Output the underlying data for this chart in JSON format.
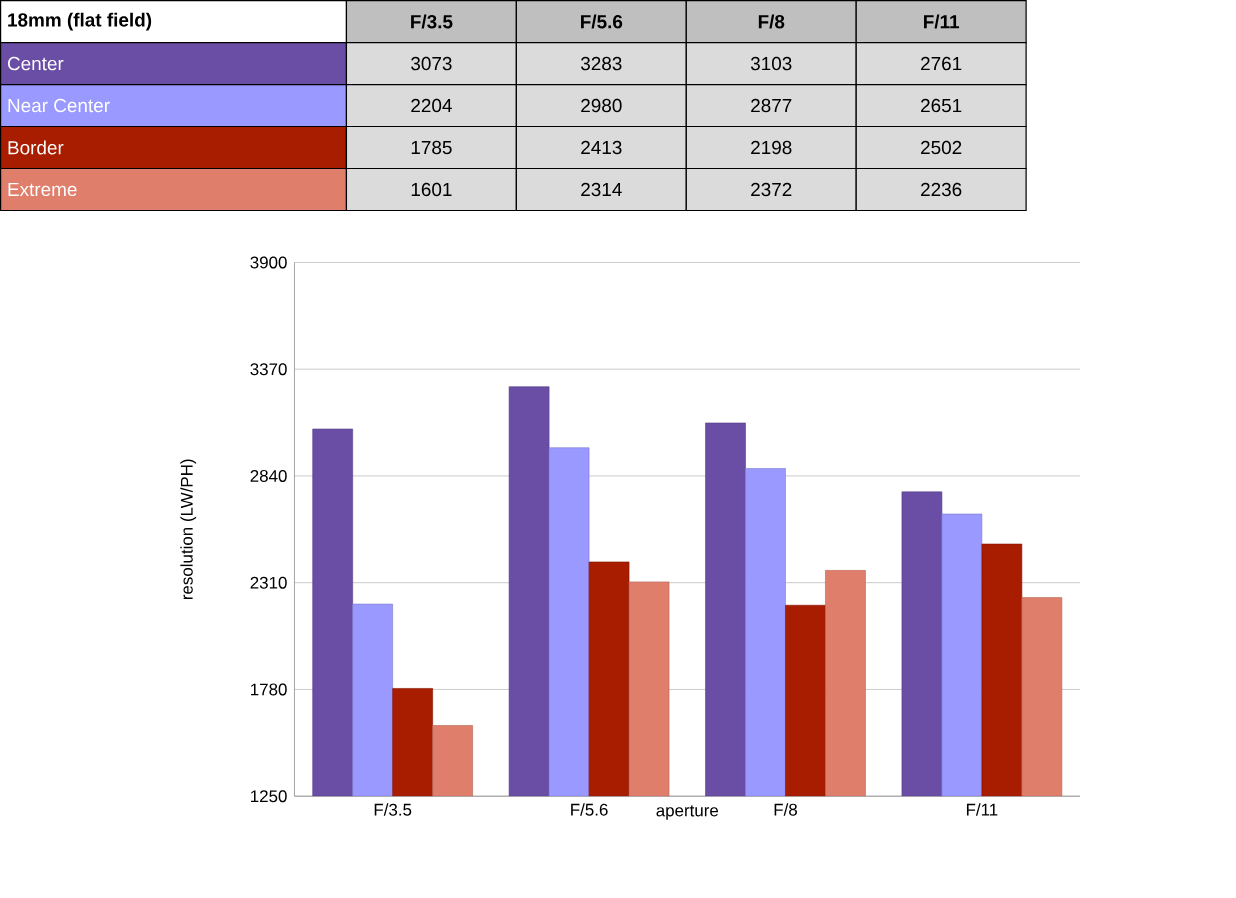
{
  "chart_data": {
    "type": "bar",
    "title": "18mm (flat field)",
    "categories": [
      "F/3.5",
      "F/5.6",
      "F/8",
      "F/11"
    ],
    "series": [
      {
        "name": "Center",
        "color": "#6a4ea6",
        "values": [
          3073,
          3283,
          3103,
          2761
        ]
      },
      {
        "name": "Near Center",
        "color": "#9a99ff",
        "values": [
          2204,
          2980,
          2877,
          2651
        ]
      },
      {
        "name": "Border",
        "color": "#a81c00",
        "values": [
          1785,
          2413,
          2198,
          2502
        ]
      },
      {
        "name": "Extreme",
        "color": "#e07e6c",
        "values": [
          1601,
          2314,
          2372,
          2236
        ]
      }
    ],
    "xlabel": "aperture",
    "ylabel": "resolution (LW/PH)",
    "ylim": [
      1250,
      3900
    ],
    "yticks": [
      1250,
      1780,
      2310,
      2840,
      3370,
      3900
    ],
    "grid": "y",
    "legend": "top",
    "data_labels": true
  }
}
